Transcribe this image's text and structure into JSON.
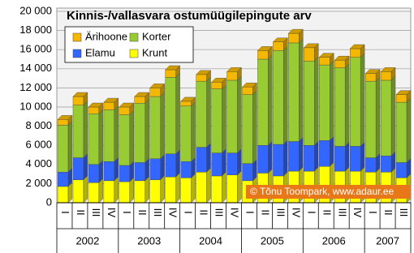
{
  "chart_data": {
    "type": "bar",
    "stacked": true,
    "title": "Kinnis-/vallasvara ostumüügilepingute arv",
    "annotation": "© Tõnu Toompark, www.adaur.ee",
    "groups": [
      {
        "label": "2002",
        "categories": [
          "I",
          "II",
          "III",
          "IV"
        ]
      },
      {
        "label": "2003",
        "categories": [
          "I",
          "II",
          "III",
          "IV"
        ]
      },
      {
        "label": "2004",
        "categories": [
          "I",
          "II",
          "III",
          "IV"
        ]
      },
      {
        "label": "2005",
        "categories": [
          "I",
          "II",
          "III",
          "IV"
        ]
      },
      {
        "label": "2006",
        "categories": [
          "I",
          "II",
          "III",
          "IV"
        ]
      },
      {
        "label": "2007",
        "categories": [
          "I",
          "II",
          "III"
        ]
      }
    ],
    "series": [
      {
        "name": "Krunt",
        "color": "#ffff00",
        "values": [
          1700,
          2400,
          2100,
          2300,
          2200,
          2300,
          2400,
          2700,
          2600,
          3200,
          2800,
          2900,
          2300,
          3100,
          2800,
          3300,
          3300,
          3800,
          3300,
          3300,
          3200,
          3200,
          2600
        ]
      },
      {
        "name": "Elamu",
        "color": "#3366ff",
        "values": [
          1500,
          2300,
          1900,
          2000,
          1700,
          1900,
          2200,
          2400,
          1700,
          2600,
          2400,
          2300,
          1800,
          2900,
          3300,
          3100,
          2700,
          2700,
          2600,
          2600,
          1500,
          1700,
          1600
        ]
      },
      {
        "name": "Korter",
        "color": "#99cc33",
        "values": [
          4900,
          5500,
          5300,
          5400,
          5300,
          6200,
          6500,
          8000,
          5800,
          6900,
          6700,
          7600,
          7200,
          9000,
          9800,
          10300,
          8800,
          7900,
          8200,
          9300,
          8000,
          7900,
          6300
        ]
      },
      {
        "name": "Ärihoone",
        "color": "#f5b800",
        "values": [
          600,
          900,
          700,
          800,
          800,
          700,
          900,
          800,
          500,
          700,
          700,
          900,
          800,
          900,
          900,
          1000,
          1400,
          800,
          800,
          900,
          800,
          900,
          800
        ]
      }
    ],
    "ylim": [
      0,
      20000
    ],
    "yticks": [
      0,
      {
        "value": 2000,
        "label": "2 000"
      },
      {
        "value": 4000,
        "label": "4 000"
      },
      {
        "value": 6000,
        "label": "6 000"
      },
      {
        "value": 8000,
        "label": "8 000"
      },
      {
        "value": 10000,
        "label": "10 000"
      },
      {
        "value": 12000,
        "label": "12 000"
      },
      {
        "value": 14000,
        "label": "14 000"
      },
      {
        "value": 16000,
        "label": "16 000"
      },
      {
        "value": 18000,
        "label": "18 000"
      },
      {
        "value": 20000,
        "label": "20 000"
      }
    ],
    "grid": true
  }
}
